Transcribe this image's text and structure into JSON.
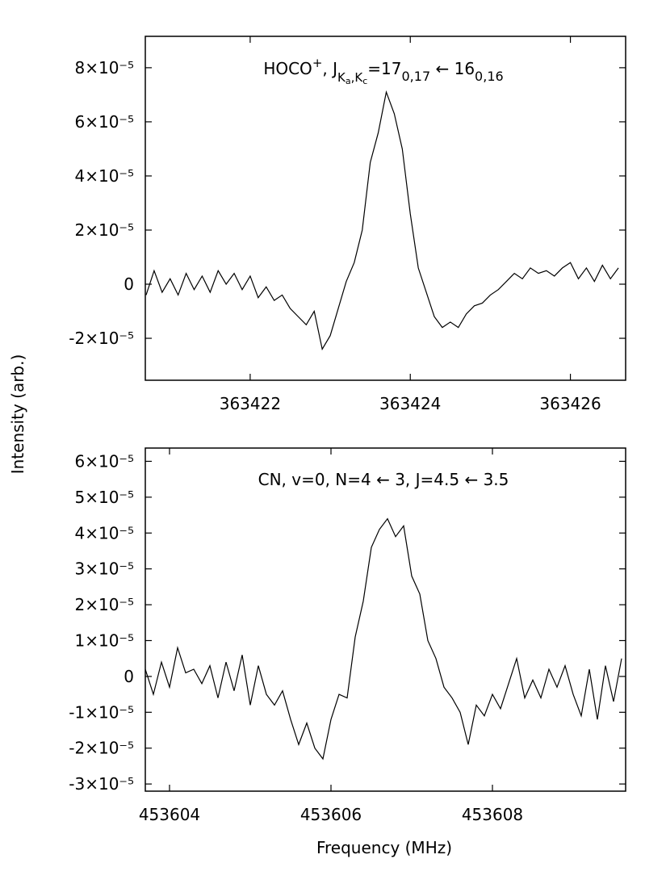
{
  "chart_data": [
    {
      "type": "line",
      "annotation": [
        "HOCO",
        "+",
        ", J",
        "K",
        "a",
        ",K",
        "c",
        "=17",
        "0,17",
        " ← 16",
        "0,16"
      ],
      "ylabel": "Intensity (arb.)",
      "xlim": [
        363420.69,
        363426.69
      ],
      "xticks": [
        363422,
        363424,
        363426
      ],
      "ylim": [
        -3.55e-05,
        9.16e-05
      ],
      "yticks": [
        {
          "value": 8e-05,
          "label": "8×10⁻⁵"
        },
        {
          "value": 6e-05,
          "label": "6×10⁻⁵"
        },
        {
          "value": 4e-05,
          "label": "4×10⁻⁵"
        },
        {
          "value": 2e-05,
          "label": "2×10⁻⁵"
        },
        0,
        {
          "value": -2e-05,
          "label": "-2×10⁻⁵"
        }
      ],
      "x": [
        363420.7,
        363420.8,
        363420.9,
        363421.0,
        363421.1,
        363421.2,
        363421.3,
        363421.4,
        363421.5,
        363421.6,
        363421.7,
        363421.8,
        363421.9,
        363422.0,
        363422.1,
        363422.2,
        363422.3,
        363422.4,
        363422.5,
        363422.6,
        363422.7,
        363422.8,
        363422.9,
        363423.0,
        363423.1,
        363423.2,
        363423.3,
        363423.4,
        363423.5,
        363423.6,
        363423.7,
        363423.8,
        363423.9,
        363424.0,
        363424.1,
        363424.2,
        363424.3,
        363424.4,
        363424.5,
        363424.6,
        363424.7,
        363424.8,
        363424.9,
        363425.0,
        363425.1,
        363425.2,
        363425.3,
        363425.4,
        363425.5,
        363425.6,
        363425.7,
        363425.8,
        363425.9,
        363426.0,
        363426.1,
        363426.2,
        363426.3,
        363426.4,
        363426.5,
        363426.6
      ],
      "series": [
        {
          "color": "#000000",
          "values": [
            -4e-06,
            5e-06,
            -3e-06,
            2e-06,
            -4e-06,
            4e-06,
            -2e-06,
            3e-06,
            -3e-06,
            5e-06,
            0.0,
            4e-06,
            -2e-06,
            3e-06,
            -5e-06,
            -1e-06,
            -6e-06,
            -4e-06,
            -9e-06,
            -1.2e-05,
            -1.5e-05,
            -1e-05,
            -2.4e-05,
            -1.9e-05,
            -9e-06,
            1e-06,
            8e-06,
            2e-05,
            4.5e-05,
            5.6e-05,
            7.1e-05,
            6.3e-05,
            5e-05,
            2.6e-05,
            6e-06,
            -3e-06,
            -1.2e-05,
            -1.6e-05,
            -1.4e-05,
            -1.6e-05,
            -1.1e-05,
            -8e-06,
            -7e-06,
            -4e-06,
            -2e-06,
            1e-06,
            4e-06,
            2e-06,
            6e-06,
            4e-06,
            5e-06,
            3e-06,
            6e-06,
            8e-06,
            2e-06,
            6e-06,
            1e-06,
            7e-06,
            2e-06,
            6e-06
          ]
        }
      ]
    },
    {
      "type": "line",
      "annotation": "CN, v=0, N=4 ← 3, J=4.5 ← 3.5",
      "xlabel": "Frequency (MHz)",
      "xlim": [
        453603.7,
        453609.65
      ],
      "xticks": [
        453604,
        453606,
        453608
      ],
      "ylim": [
        -3.2e-05,
        6.37e-05
      ],
      "yticks": [
        {
          "value": 6e-05,
          "label": "6×10⁻⁵"
        },
        {
          "value": 5e-05,
          "label": "5×10⁻⁵"
        },
        {
          "value": 4e-05,
          "label": "4×10⁻⁵"
        },
        {
          "value": 3e-05,
          "label": "3×10⁻⁵"
        },
        {
          "value": 2e-05,
          "label": "2×10⁻⁵"
        },
        {
          "value": 1e-05,
          "label": "1×10⁻⁵"
        },
        0,
        {
          "value": -1e-05,
          "label": "-1×10⁻⁵"
        },
        {
          "value": -2e-05,
          "label": "-2×10⁻⁵"
        },
        {
          "value": -3e-05,
          "label": "-3×10⁻⁵"
        }
      ],
      "x": [
        453603.7,
        453603.8,
        453603.9,
        453604.0,
        453604.1,
        453604.2,
        453604.3,
        453604.4,
        453604.5,
        453604.6,
        453604.7,
        453604.8,
        453604.9,
        453605.0,
        453605.1,
        453605.2,
        453605.3,
        453605.4,
        453605.5,
        453605.6,
        453605.7,
        453605.8,
        453605.9,
        453606.0,
        453606.1,
        453606.2,
        453606.3,
        453606.4,
        453606.5,
        453606.6,
        453606.7,
        453606.8,
        453606.9,
        453607.0,
        453607.1,
        453607.2,
        453607.3,
        453607.4,
        453607.5,
        453607.6,
        453607.7,
        453607.8,
        453607.9,
        453608.0,
        453608.1,
        453608.2,
        453608.3,
        453608.4,
        453608.5,
        453608.6,
        453608.7,
        453608.8,
        453608.9,
        453609.0,
        453609.1,
        453609.2,
        453609.3,
        453609.4,
        453609.5,
        453609.6
      ],
      "series": [
        {
          "color": "#000000",
          "values": [
            2e-06,
            -5e-06,
            4e-06,
            -3e-06,
            8e-06,
            1e-06,
            2e-06,
            -2e-06,
            3e-06,
            -6e-06,
            4e-06,
            -4e-06,
            6e-06,
            -8e-06,
            3e-06,
            -5e-06,
            -8e-06,
            -4e-06,
            -1.2e-05,
            -1.9e-05,
            -1.3e-05,
            -2e-05,
            -2.3e-05,
            -1.2e-05,
            -5e-06,
            -6e-06,
            1.1e-05,
            2.1e-05,
            3.6e-05,
            4.1e-05,
            4.4e-05,
            3.9e-05,
            4.2e-05,
            2.8e-05,
            2.3e-05,
            1e-05,
            5e-06,
            -3e-06,
            -6e-06,
            -1e-05,
            -1.9e-05,
            -8e-06,
            -1.1e-05,
            -5e-06,
            -9e-06,
            -2e-06,
            5e-06,
            -6e-06,
            -1e-06,
            -6e-06,
            2e-06,
            -3e-06,
            3e-06,
            -5e-06,
            -1.1e-05,
            2e-06,
            -1.2e-05,
            3e-06,
            -7e-06,
            5e-06
          ]
        }
      ]
    }
  ]
}
